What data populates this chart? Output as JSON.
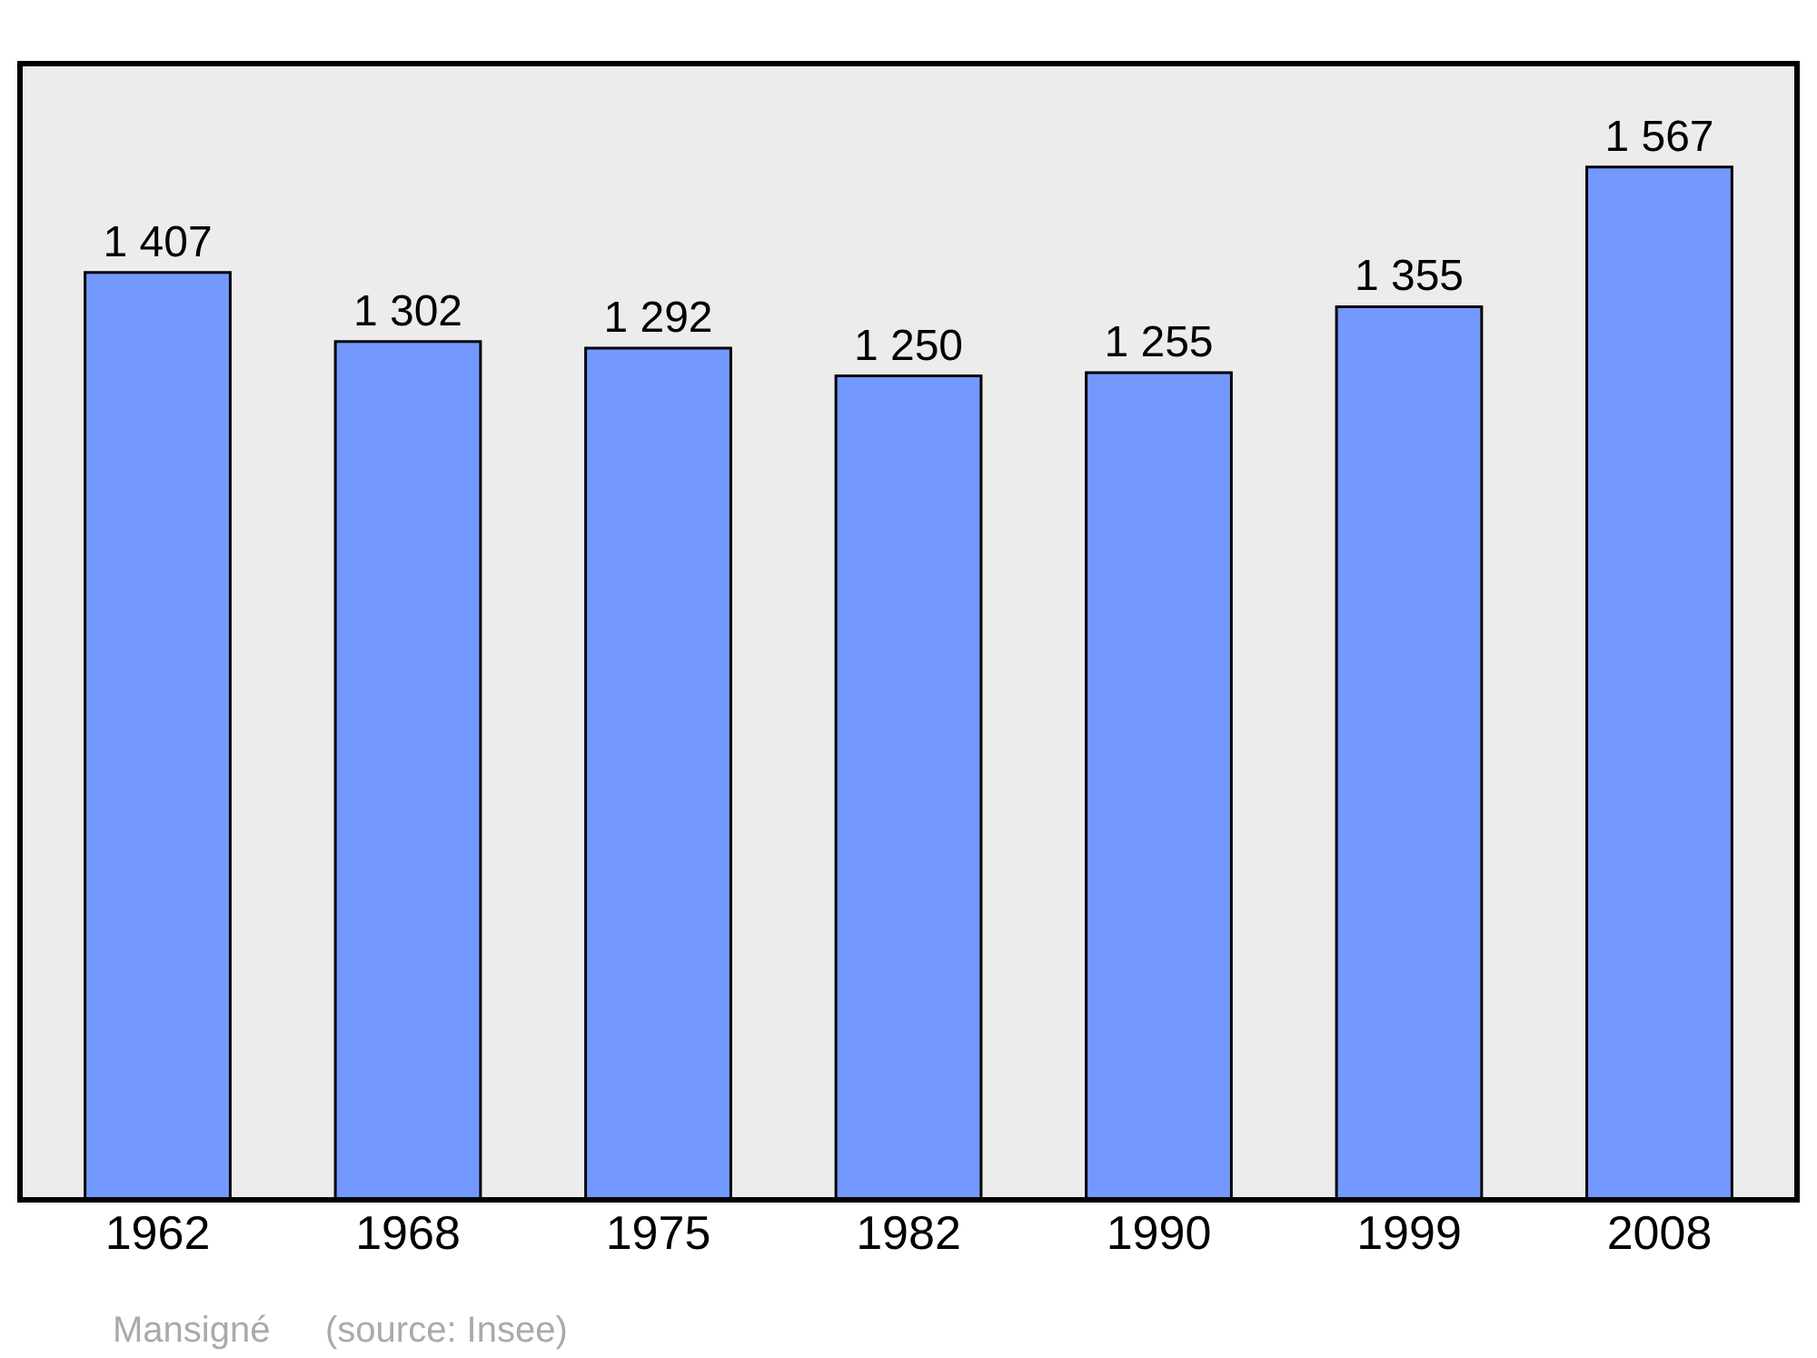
{
  "chart_data": {
    "type": "bar",
    "categories": [
      "1962",
      "1968",
      "1975",
      "1982",
      "1990",
      "1999",
      "2008"
    ],
    "values": [
      1407,
      1302,
      1292,
      1250,
      1255,
      1355,
      1567
    ],
    "value_labels": [
      "1 407",
      "1 302",
      "1 292",
      "1 250",
      "1 255",
      "1 355",
      "1 567"
    ],
    "color": "#7399ff",
    "grid": false,
    "legend": false,
    "annotations": [
      "Mansigné",
      "(source: Insee)"
    ]
  }
}
